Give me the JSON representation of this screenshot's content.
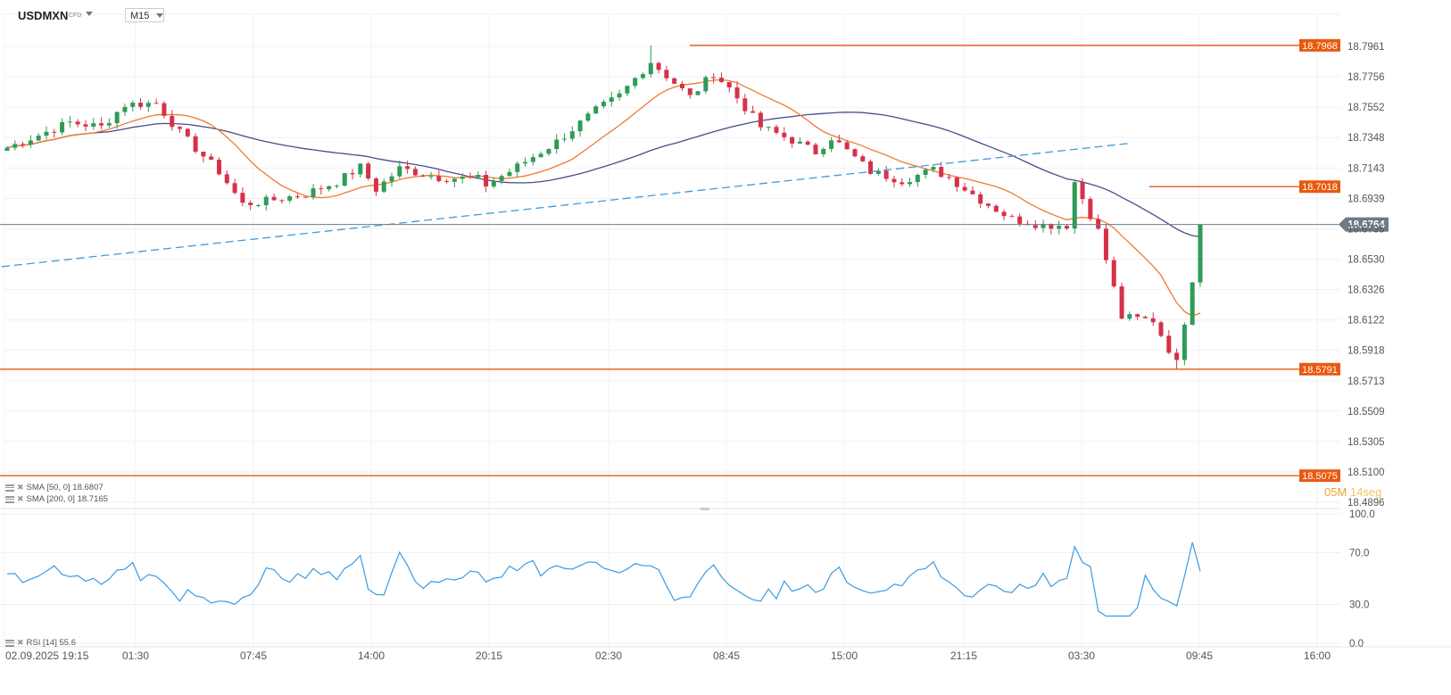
{
  "header": {
    "symbol": "USDMXN",
    "symbol_type": "CFD",
    "timeframe": "M15"
  },
  "indicators": {
    "sma50": "SMA [50, 0] 18.6807",
    "sma200": "SMA [200, 0] 18.7165",
    "rsi": "RSI [14] 55.6"
  },
  "countdown": {
    "minutes": "05M",
    "seconds": "14seg"
  },
  "colors": {
    "bull": "#2e9b57",
    "bear": "#d6314a",
    "sma50": "#f07a2e",
    "sma200": "#4a4a8a",
    "level": "#e85a10",
    "trend": "#3a9be0",
    "rsi": "#3a9be0",
    "price": "#6b7b8a",
    "grid": "#eef0f3"
  },
  "chart_data": [
    {
      "type": "candlestick",
      "title": "USDMXN",
      "y_ticks": [
        "18.7961",
        "18.7756",
        "18.7552",
        "18.7348",
        "18.7143",
        "18.6939",
        "18.6735",
        "18.6530",
        "18.6326",
        "18.6122",
        "18.5918",
        "18.5713",
        "18.5509",
        "18.5305",
        "18.5100",
        "18.4896"
      ],
      "ylim": [
        18.4896,
        18.7961
      ],
      "x_ticks": [
        "02.09.2025  19:15",
        "01:30",
        "07:45",
        "14:00",
        "20:15",
        "02:30",
        "08:45",
        "15:00",
        "21:15",
        "03:30",
        "09:45",
        "16:00"
      ],
      "current_price": "18.6764",
      "horizontal_levels": [
        "18.7968",
        "18.7018",
        "18.5791",
        "18.5075"
      ],
      "series": [
        {
          "name": "SMA [50, 0]",
          "last": 18.6807
        },
        {
          "name": "SMA [200, 0]",
          "last": 18.7165
        }
      ],
      "key_prices": [
        {
          "x": "02.09.2025  19:15",
          "close": 18.728
        },
        {
          "x": "01:30",
          "high": 18.779,
          "close": 18.757
        },
        {
          "x": "07:45",
          "close": 18.69
        },
        {
          "x": "14:00",
          "close": 18.715
        },
        {
          "x": "20:15",
          "close": 18.707
        },
        {
          "x": "02:30",
          "close": 18.753
        },
        {
          "x": "08:45",
          "high": 18.7968,
          "close": 18.778
        },
        {
          "x": "15:00",
          "close": 18.735
        },
        {
          "x": "21:15",
          "close": 18.708
        },
        {
          "x": "03:30",
          "close": 18.676
        },
        {
          "x": "09:45",
          "low": 18.5791,
          "close": 18.6764
        }
      ]
    },
    {
      "type": "line",
      "title": "RSI [14]",
      "y_ticks": [
        "100.0",
        "70.0",
        "30.0",
        "0.0"
      ],
      "ylim": [
        0,
        100
      ],
      "series": [
        {
          "name": "RSI [14]",
          "last": 55.6
        }
      ]
    }
  ]
}
